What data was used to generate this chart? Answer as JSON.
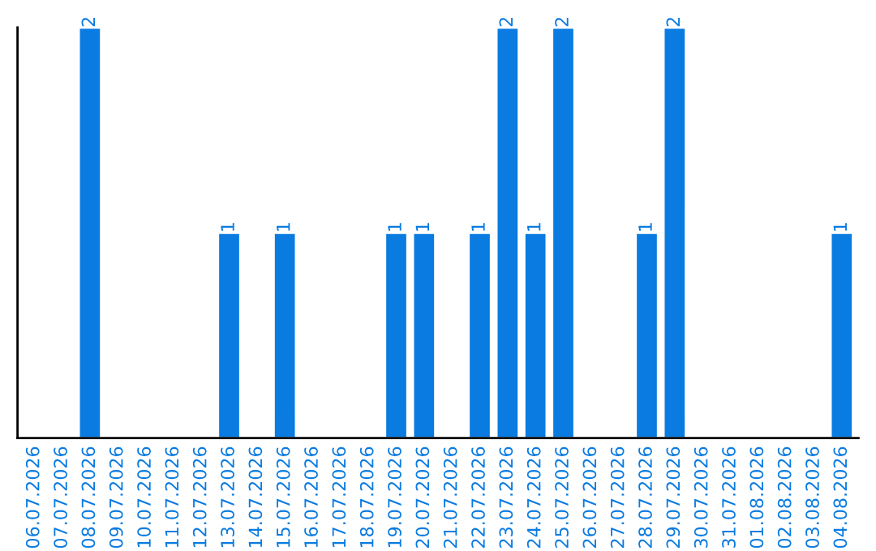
{
  "chart_data": {
    "type": "bar",
    "categories": [
      "06.07.2026",
      "07.07.2026",
      "08.07.2026",
      "09.07.2026",
      "10.07.2026",
      "11.07.2026",
      "12.07.2026",
      "13.07.2026",
      "14.07.2026",
      "15.07.2026",
      "16.07.2026",
      "17.07.2026",
      "18.07.2026",
      "19.07.2026",
      "20.07.2026",
      "21.07.2026",
      "22.07.2026",
      "23.07.2026",
      "24.07.2026",
      "25.07.2026",
      "26.07.2026",
      "27.07.2026",
      "28.07.2026",
      "29.07.2026",
      "30.07.2026",
      "31.07.2026",
      "01.08.2026",
      "02.08.2026",
      "03.08.2026",
      "04.08.2026"
    ],
    "values": [
      null,
      null,
      2,
      null,
      null,
      null,
      null,
      1,
      null,
      1,
      null,
      null,
      null,
      1,
      1,
      null,
      1,
      2,
      1,
      2,
      null,
      null,
      1,
      2,
      null,
      null,
      null,
      null,
      null,
      1
    ],
    "value_labels": [
      null,
      null,
      "2",
      null,
      null,
      null,
      null,
      "1",
      null,
      "1",
      null,
      null,
      null,
      "1",
      "1",
      null,
      "1",
      "2",
      "1",
      "2",
      null,
      null,
      "1",
      "2",
      null,
      null,
      null,
      null,
      null,
      "1"
    ],
    "color": "#0a7be0",
    "grid": false,
    "legend": false,
    "tick_labels": "x"
  }
}
